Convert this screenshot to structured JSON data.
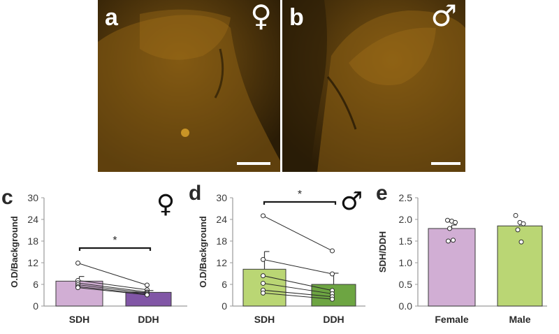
{
  "images": {
    "a": {
      "letter": "a",
      "symbol": "♀"
    },
    "b": {
      "letter": "b",
      "symbol": "♂"
    }
  },
  "colors": {
    "female_light": "#d1aed4",
    "female_dark": "#8156a6",
    "male_light": "#bad674",
    "male_dark": "#6da542",
    "micrograph_stain": "#c08a1e"
  },
  "chart_data": [
    {
      "panel": "c",
      "sex_symbol": "♀",
      "type": "bar",
      "categories": [
        "SDH",
        "DDH"
      ],
      "values": [
        6.9,
        3.8
      ],
      "errors": [
        1.3,
        0.5
      ],
      "ylabel": "O.D/Background",
      "ylim": [
        0,
        30
      ],
      "yticks": [
        0,
        6,
        12,
        18,
        24,
        30
      ],
      "colors": [
        "#d1aed4",
        "#8156a6"
      ],
      "significance": "*",
      "paired": [
        [
          11.9,
          5.8
        ],
        [
          7.1,
          4.5
        ],
        [
          6.4,
          3.9
        ],
        [
          5.9,
          3.6
        ],
        [
          5.4,
          3.3
        ],
        [
          5.1,
          3.1
        ]
      ]
    },
    {
      "panel": "d",
      "sex_symbol": "♂",
      "type": "bar",
      "categories": [
        "SDH",
        "DDH"
      ],
      "values": [
        10.2,
        6.0
      ],
      "errors": [
        4.9,
        3.1
      ],
      "ylabel": "O.D/Background",
      "ylim": [
        0,
        30
      ],
      "yticks": [
        0,
        6,
        12,
        18,
        24,
        30
      ],
      "colors": [
        "#bad674",
        "#6da542"
      ],
      "significance": "*",
      "paired": [
        [
          25.0,
          15.3
        ],
        [
          12.9,
          8.9
        ],
        [
          8.4,
          4.3
        ],
        [
          6.3,
          3.4
        ],
        [
          4.4,
          2.6
        ],
        [
          3.6,
          1.9
        ]
      ]
    },
    {
      "panel": "e",
      "type": "bar",
      "categories": [
        "Female",
        "Male"
      ],
      "values": [
        1.79,
        1.85
      ],
      "errors": [
        0.08,
        0.07
      ],
      "ylabel": "SDH/DDH",
      "ylim": [
        0,
        2.5
      ],
      "yticks": [
        "0.0",
        "0.5",
        "1.0",
        "1.5",
        "2.0",
        "2.5"
      ],
      "colors": [
        "#d1aed4",
        "#bad674"
      ],
      "points": [
        [
          1.98,
          1.96,
          1.93,
          1.79,
          1.52,
          1.5
        ],
        [
          2.09,
          1.93,
          1.9,
          1.76,
          1.48
        ]
      ]
    }
  ]
}
